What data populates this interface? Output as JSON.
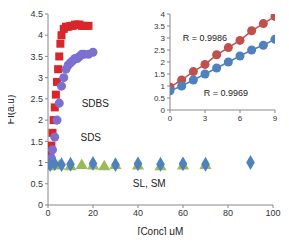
{
  "chart_data": [
    {
      "type": "scatter",
      "xlabel": "[Conc] μM",
      "ylabel": "FI(a.u)",
      "xlim": [
        0,
        100
      ],
      "xticks": [
        0,
        20,
        40,
        60,
        80,
        100
      ],
      "ylim": [
        0,
        4.5
      ],
      "yticks": [
        0,
        0.5,
        1,
        1.5,
        2,
        2.5,
        3,
        3.5,
        4,
        4.5
      ],
      "series": [
        {
          "name": "SDBS",
          "color": "#d9262a",
          "marker": "square",
          "x": [
            0.5,
            1,
            1.5,
            2,
            2.5,
            3,
            3.5,
            4,
            4.5,
            5,
            5.5,
            6,
            7,
            8,
            9,
            10,
            11,
            12,
            13,
            14,
            15,
            16,
            17,
            18
          ],
          "values": [
            1.0,
            1.2,
            1.4,
            1.7,
            2.0,
            2.3,
            2.6,
            2.9,
            3.2,
            3.5,
            3.8,
            4.0,
            4.15,
            4.2,
            4.2,
            4.22,
            4.22,
            4.25,
            4.25,
            4.25,
            4.22,
            4.22,
            4.22,
            4.22
          ]
        },
        {
          "name": "SDS",
          "color": "#7b6fd0",
          "marker": "circle",
          "x": [
            0.5,
            1,
            1.5,
            2,
            3,
            4,
            5,
            6,
            7,
            8,
            9,
            10,
            11,
            12,
            13,
            14,
            15,
            16,
            18,
            20
          ],
          "values": [
            0.95,
            1.0,
            1.1,
            1.3,
            1.6,
            2.0,
            2.4,
            2.8,
            3.0,
            3.2,
            3.3,
            3.35,
            3.4,
            3.45,
            3.45,
            3.5,
            3.55,
            3.55,
            3.55,
            3.6
          ]
        },
        {
          "name": "SL",
          "color": "#9bbb59",
          "marker": "triangle",
          "x": [
            0,
            5,
            10,
            15,
            20,
            25,
            30,
            40,
            50,
            60,
            70
          ],
          "values": [
            0.9,
            0.92,
            0.9,
            0.93,
            0.92,
            0.9,
            0.93,
            0.92,
            0.9,
            0.92,
            0.93
          ]
        },
        {
          "name": "SM",
          "color": "#4f81bd",
          "marker": "diamond",
          "x": [
            1,
            3,
            6,
            10,
            20,
            30,
            40,
            50,
            60,
            70,
            90
          ],
          "values": [
            0.95,
            0.97,
            0.95,
            0.96,
            0.98,
            0.95,
            0.97,
            0.96,
            0.97,
            0.96,
            1.0
          ]
        }
      ],
      "annotations": [
        {
          "text": "SDBS",
          "x": 21,
          "y": 2.4
        },
        {
          "text": "SDS",
          "x": 19,
          "y": 1.6
        },
        {
          "text": "SL, SM",
          "x": 45,
          "y": 0.5
        }
      ]
    },
    {
      "type": "scatter",
      "xlim": [
        0,
        9
      ],
      "xticks": [
        0,
        3,
        6,
        9
      ],
      "ylim": [
        0,
        4
      ],
      "yticks": [
        0,
        0.5,
        1,
        1.5,
        2,
        2.5,
        3,
        3.5,
        4
      ],
      "series": [
        {
          "color": "#c0504d",
          "marker": "circle",
          "line_style": "solid",
          "x": [
            0,
            1,
            2,
            3,
            4,
            5,
            6,
            7,
            8,
            9
          ],
          "values": [
            0.95,
            1.25,
            1.6,
            1.9,
            2.3,
            2.6,
            2.9,
            3.3,
            3.6,
            3.9
          ]
        },
        {
          "color": "#4f81bd",
          "marker": "circle",
          "line_style": "solid",
          "x": [
            0,
            1,
            2,
            3,
            4,
            5,
            6,
            7,
            8,
            9
          ],
          "values": [
            0.8,
            1.0,
            1.25,
            1.5,
            1.75,
            2.0,
            2.25,
            2.5,
            2.7,
            2.95
          ]
        }
      ],
      "annotations": [
        {
          "text": "R = 0.9986",
          "x": 3,
          "y": 3.0
        },
        {
          "text": "R = 0.9969",
          "x": 4.8,
          "y": 0.7
        }
      ]
    }
  ]
}
